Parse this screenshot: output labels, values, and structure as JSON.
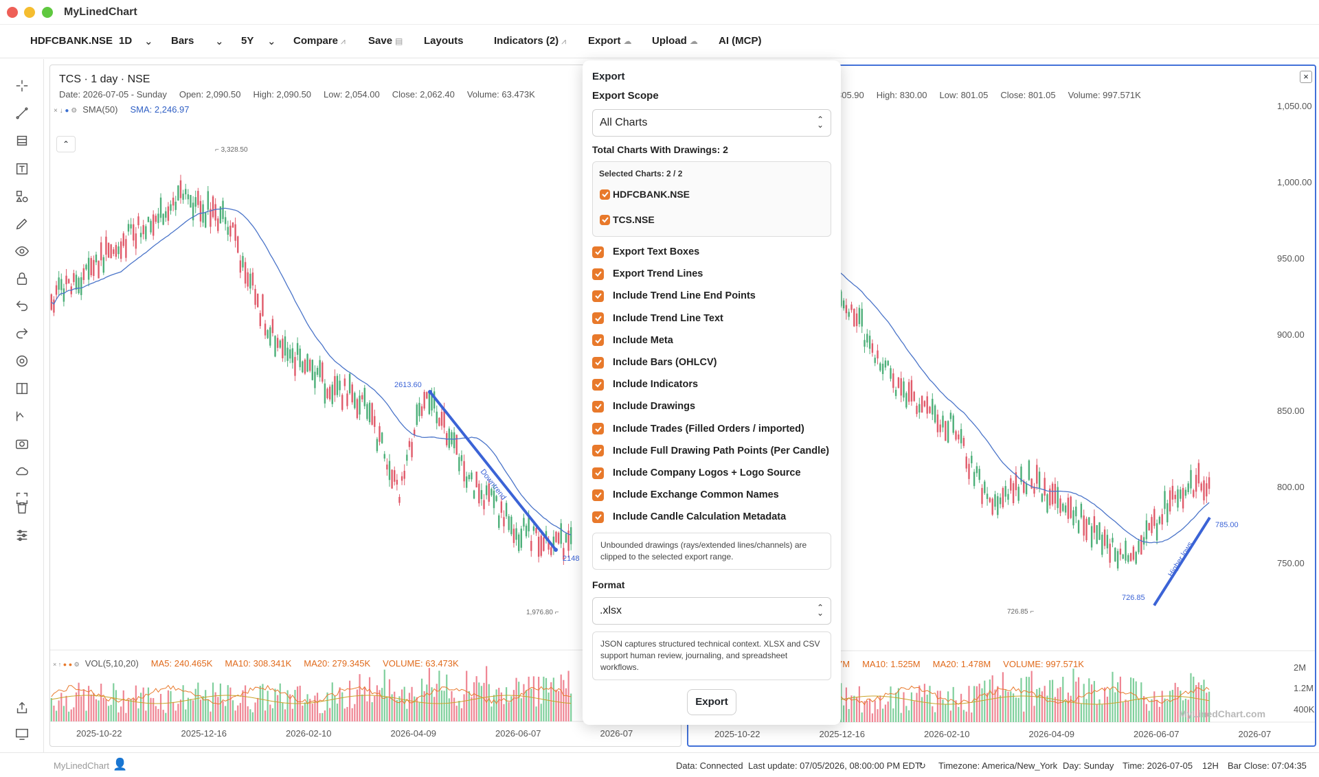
{
  "window": {
    "title": "MyLinedChart"
  },
  "toolbar": {
    "symbol": "HDFCBANK.NSE",
    "interval": "1D",
    "chart_type": "Bars",
    "range": "5Y",
    "compare": "Compare",
    "save": "Save",
    "layouts": "Layouts",
    "indicators": "Indicators (2)",
    "export": "Export",
    "upload": "Upload",
    "ai": "AI (MCP)"
  },
  "left_tools": [
    "crosshair-icon",
    "trend-line-icon",
    "fib-icon",
    "text-icon",
    "shapes-icon",
    "pencil-icon",
    "eye-icon",
    "lock-icon",
    "undo-icon",
    "redo-icon",
    "settings-icon",
    "split-icon",
    "eth-icon",
    "camera-icon",
    "cloud-icon",
    "fullscreen-icon",
    "trash-icon",
    "sliders-icon"
  ],
  "left_chart": {
    "title": "TCS · 1 day · NSE",
    "ohlc": {
      "date": "Date: 2026-07-05 - Sunday",
      "open": "Open: 2,090.50",
      "high": "High: 2,090.50",
      "low": "Low: 2,054.00",
      "close": "Close: 2,062.40",
      "volume": "Volume: 63.473K"
    },
    "sma_label": "SMA(50)",
    "sma_value": "SMA: 2,246.97",
    "max_label": "3,328.50",
    "min_label": "1,976.80",
    "trend_start": "2613.60",
    "trend_end": "2148",
    "trend_text": "Downtrend",
    "vol": {
      "label": "VOL(5,10,20)",
      "ma5": "MA5: 240.465K",
      "ma10": "MA10: 308.341K",
      "ma20": "MA20: 279.345K",
      "volume": "VOLUME: 63.473K"
    },
    "dates": [
      "2025-10-22",
      "2025-12-16",
      "2026-02-10",
      "2026-04-09",
      "2026-06-07",
      "2026-07"
    ]
  },
  "right_chart": {
    "ohlc": {
      "open": "805.90",
      "high": "High: 830.00",
      "low": "Low: 801.05",
      "close": "Close: 801.05",
      "volume": "Volume: 997.571K"
    },
    "price_axis": [
      "1,050.00",
      "1,000.00",
      "950.00",
      "900.00",
      "850.00",
      "800.00",
      "750.00"
    ],
    "vol_axis": [
      "2M",
      "1.2M",
      "400K"
    ],
    "min_label": "726.85",
    "trend_start": "726.85",
    "trend_end": "785.00",
    "trend_text": "Higher lows",
    "vol": {
      "ma5": "7M",
      "ma10": "MA10: 1.525M",
      "ma20": "MA20: 1.478M",
      "volume": "VOLUME: 997.571K"
    },
    "dates": [
      "2025-10-22",
      "2025-12-16",
      "2026-02-10",
      "2026-04-09",
      "2026-06-07",
      "2026-07"
    ],
    "watermark": "MyLinedChart.com"
  },
  "export_panel": {
    "title": "Export",
    "scope_label": "Export Scope",
    "scope_value": "All Charts",
    "total": "Total Charts With Drawings: 2",
    "selected": "Selected Charts: 2 / 2",
    "charts": [
      "HDFCBANK.NSE",
      "TCS.NSE"
    ],
    "options": [
      "Export Text Boxes",
      "Export Trend Lines",
      "Include Trend Line End Points",
      "Include Trend Line Text",
      "Include Meta",
      "Include Bars (OHLCV)",
      "Include Indicators",
      "Include Drawings",
      "Include Trades (Filled Orders / imported)",
      "Include Full Drawing Path Points (Per Candle)",
      "Include Company Logos + Logo Source",
      "Include Exchange Common Names",
      "Include Candle Calculation Metadata"
    ],
    "unbounded_note": "Unbounded drawings (rays/extended lines/channels) are clipped to the selected export range.",
    "format_label": "Format",
    "format_value": ".xlsx",
    "format_note": "JSON captures structured technical context. XLSX and CSV support human review, journaling, and spreadsheet workflows.",
    "button": "Export"
  },
  "status": {
    "brand": "MyLinedChart",
    "data": "Data: Connected",
    "last_update": "Last update: 07/05/2026, 08:00:00 PM EDT",
    "timezone": "Timezone: America/New_York",
    "day": "Day: Sunday",
    "time": "Time: 2026-07-05",
    "hour_mode": "12H",
    "bar_close": "Bar Close: 07:04:35"
  }
}
